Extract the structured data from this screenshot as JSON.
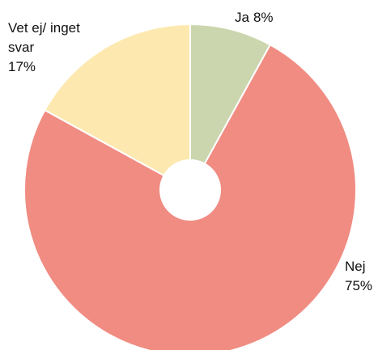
{
  "chart_data": {
    "type": "pie",
    "categories": [
      "Ja",
      "Nej",
      "Vet ej/ inget svar"
    ],
    "values": [
      8,
      75,
      17
    ],
    "value_labels": [
      "8%",
      "75%",
      "17%"
    ],
    "colors": [
      "#cbd6ae",
      "#f08c82",
      "#fde9b0"
    ],
    "donut": true
  }
}
